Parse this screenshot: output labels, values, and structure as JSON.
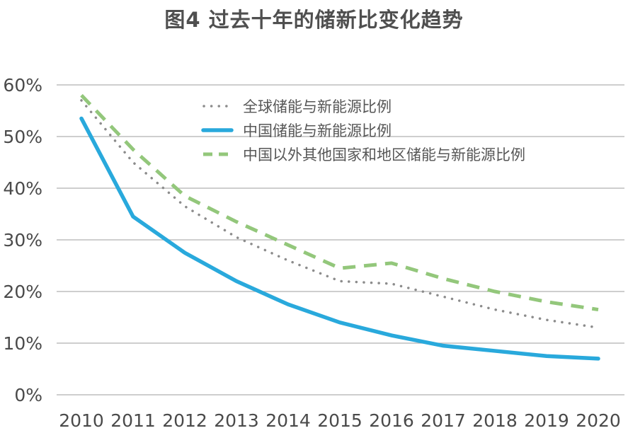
{
  "colors": {
    "background": "#ffffff",
    "gridline": "#b0b0b0",
    "axis_text": "#4a4a4a",
    "title_text": "#4f4f4f",
    "legend_text": "#565656",
    "series_global": "#8c8c8c",
    "series_china": "#29a9dc",
    "series_other": "#93c77b"
  },
  "chart_data": {
    "type": "line",
    "title": "图4 过去十年的储新比变化趋势",
    "x": [
      "2010",
      "2011",
      "2012",
      "2013",
      "2014",
      "2015",
      "2016",
      "2017",
      "2018",
      "2019",
      "2020"
    ],
    "xlabel": "",
    "ylabel": "",
    "ylim": [
      0,
      60
    ],
    "ytick_step": 10,
    "ytick_suffix": "%",
    "grid": "horizontal-only",
    "legend_position": "inside-top-left",
    "series": [
      {
        "id": "global",
        "name": "全球储能与新能源比例",
        "style": "dotted",
        "color": "#8c8c8c",
        "values": [
          57,
          45,
          36.5,
          30.5,
          26,
          22,
          21.5,
          19,
          16.5,
          14.5,
          13
        ]
      },
      {
        "id": "china",
        "name": "中国储能与新能源比例",
        "style": "solid",
        "color": "#29a9dc",
        "values": [
          53.5,
          34.5,
          27.5,
          22,
          17.5,
          14,
          11.5,
          9.5,
          8.5,
          7.5,
          7
        ]
      },
      {
        "id": "other",
        "name": "中国以外其他国家和地区储能与新能源比例",
        "style": "dashed",
        "color": "#93c77b",
        "values": [
          58,
          47.5,
          38.5,
          33.5,
          29,
          24.5,
          25.5,
          22.5,
          20,
          18,
          16.5
        ]
      }
    ]
  }
}
